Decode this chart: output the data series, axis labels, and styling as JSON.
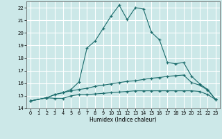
{
  "xlabel": "Humidex (Indice chaleur)",
  "xlim": [
    -0.5,
    23.5
  ],
  "ylim": [
    14,
    22.5
  ],
  "yticks": [
    14,
    15,
    16,
    17,
    18,
    19,
    20,
    21,
    22
  ],
  "xticks": [
    0,
    1,
    2,
    3,
    4,
    5,
    6,
    7,
    8,
    9,
    10,
    11,
    12,
    13,
    14,
    15,
    16,
    17,
    18,
    19,
    20,
    21,
    22,
    23
  ],
  "bg_color": "#cce8e8",
  "grid_color": "#ffffff",
  "line_color": "#1a6b6b",
  "curve1_x": [
    0,
    2,
    3,
    4,
    5,
    6,
    7,
    8,
    9,
    10,
    11,
    12,
    13,
    14,
    15,
    16,
    17,
    18,
    19,
    20,
    21,
    22,
    23
  ],
  "curve1_y": [
    14.6,
    14.85,
    15.1,
    15.25,
    15.5,
    16.1,
    18.8,
    19.35,
    20.35,
    21.35,
    22.2,
    21.05,
    22.0,
    21.9,
    20.05,
    19.45,
    17.65,
    17.55,
    17.65,
    16.55,
    15.95,
    15.5,
    14.7
  ],
  "curve2_x": [
    0,
    2,
    3,
    4,
    5,
    6,
    7,
    8,
    9,
    10,
    11,
    12,
    13,
    14,
    15,
    16,
    17,
    18,
    19,
    20,
    21,
    22,
    23
  ],
  "curve2_y": [
    14.6,
    14.85,
    15.1,
    15.25,
    15.4,
    15.5,
    15.6,
    15.75,
    15.85,
    15.95,
    16.05,
    16.15,
    16.2,
    16.3,
    16.4,
    16.45,
    16.55,
    16.6,
    16.65,
    16.05,
    15.85,
    15.45,
    14.7
  ],
  "curve3_x": [
    0,
    2,
    3,
    4,
    5,
    6,
    7,
    8,
    9,
    10,
    11,
    12,
    13,
    14,
    15,
    16,
    17,
    18,
    19,
    20,
    21,
    22,
    23
  ],
  "curve3_y": [
    14.6,
    14.85,
    14.8,
    14.8,
    15.0,
    15.1,
    15.1,
    15.15,
    15.2,
    15.25,
    15.3,
    15.35,
    15.4,
    15.4,
    15.4,
    15.4,
    15.4,
    15.4,
    15.4,
    15.4,
    15.35,
    15.1,
    14.7
  ]
}
